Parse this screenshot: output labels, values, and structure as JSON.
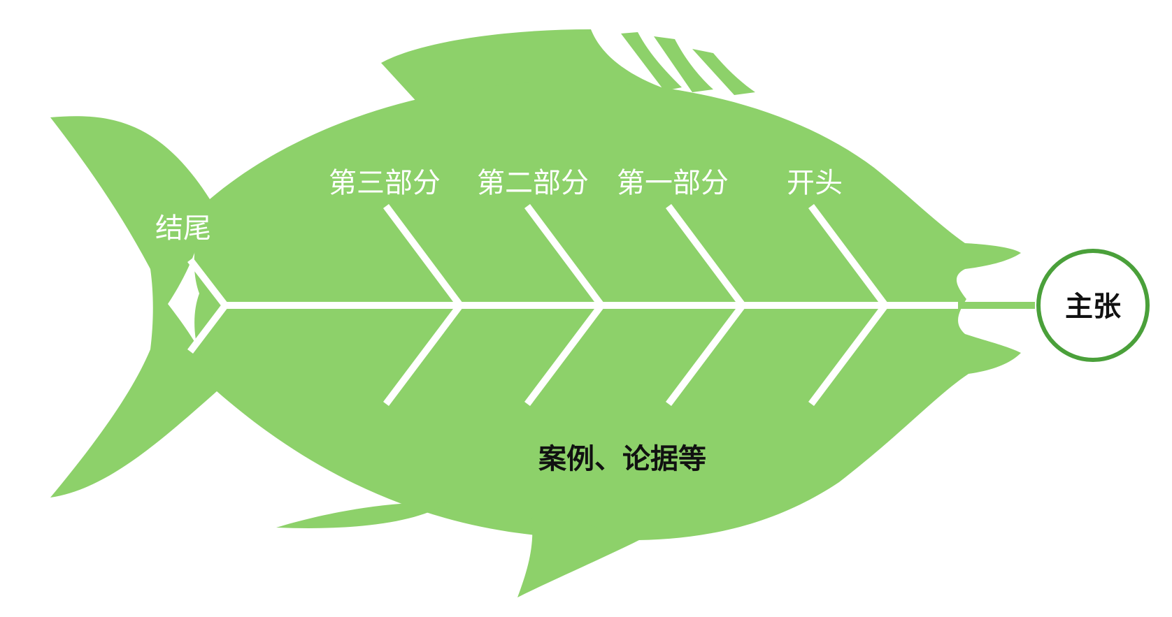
{
  "diagram": {
    "head_label": "主张",
    "bone_labels": {
      "tail": "结尾",
      "part3": "第三部分",
      "part2": "第二部分",
      "part1": "第一部分",
      "opening": "开头"
    },
    "body_label": "案例、论据等"
  },
  "colors": {
    "fish_body": "#8dd16a",
    "bones": "#ffffff",
    "head_circle_stroke": "#4aa03a"
  }
}
